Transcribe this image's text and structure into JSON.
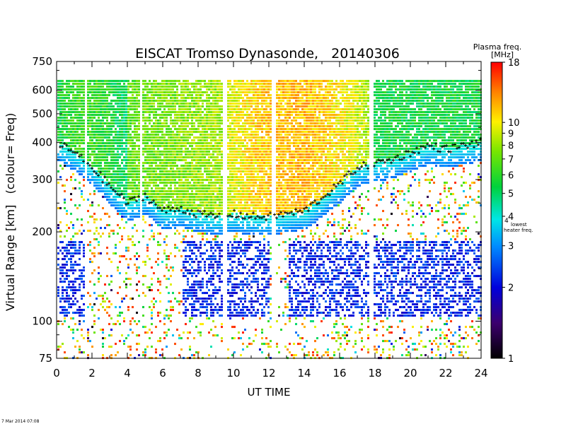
{
  "chart_data": {
    "type": "heatmap",
    "title": "EISCAT Tromso Dynasonde,   20140306",
    "xlabel": "UT TIME",
    "ylabel": "Virtual Range [km]   (colour= Freq)",
    "x_ticks": [
      "0",
      "2",
      "4",
      "6",
      "8",
      "10",
      "12",
      "14",
      "16",
      "18",
      "20",
      "22",
      "24"
    ],
    "xlim": [
      0,
      24
    ],
    "y_ticks": [
      "75",
      "100",
      "200",
      "300",
      "400",
      "500",
      "600",
      "750"
    ],
    "y_tick_values": [
      75,
      100,
      200,
      300,
      400,
      500,
      600,
      750
    ],
    "ylim": [
      75,
      750
    ],
    "y_scale": "log",
    "colorbar": {
      "title": "Plasma freq.",
      "unit": "[MHz]",
      "ticks": [
        "1",
        "2",
        "3",
        "4",
        "5",
        "6",
        "7",
        "8",
        "9",
        "10",
        "18"
      ],
      "tick_values": [
        1,
        2,
        3,
        4,
        5,
        6,
        7,
        8,
        9,
        10,
        18
      ],
      "range": [
        1,
        18
      ],
      "scale": "log",
      "annotation_mark": "4",
      "annotation_line1": "lowest",
      "annotation_line2": "heater freq."
    },
    "data_gaps_ut": [
      [
        1.6,
        1.7
      ],
      [
        4.7,
        4.8
      ],
      [
        9.3,
        9.6
      ],
      [
        12.1,
        12.3
      ],
      [
        17.6,
        17.9
      ]
    ],
    "f_region_trace_km": [
      [
        0.0,
        400
      ],
      [
        1.0,
        370
      ],
      [
        2.0,
        330
      ],
      [
        3.0,
        285
      ],
      [
        4.0,
        250
      ],
      [
        5.0,
        265
      ],
      [
        6.0,
        235
      ],
      [
        7.0,
        240
      ],
      [
        8.0,
        230
      ],
      [
        9.0,
        225
      ],
      [
        10.0,
        230
      ],
      [
        11.0,
        225
      ],
      [
        12.0,
        225
      ],
      [
        13.0,
        230
      ],
      [
        14.0,
        235
      ],
      [
        15.0,
        260
      ],
      [
        16.0,
        290
      ],
      [
        17.0,
        330
      ],
      [
        19.0,
        350
      ],
      [
        20.0,
        370
      ],
      [
        21.0,
        390
      ],
      [
        22.0,
        380
      ],
      [
        23.0,
        390
      ],
      [
        24.0,
        400
      ]
    ]
  },
  "footer": {
    "timestamp": "7 Mar 2014 07:08"
  }
}
